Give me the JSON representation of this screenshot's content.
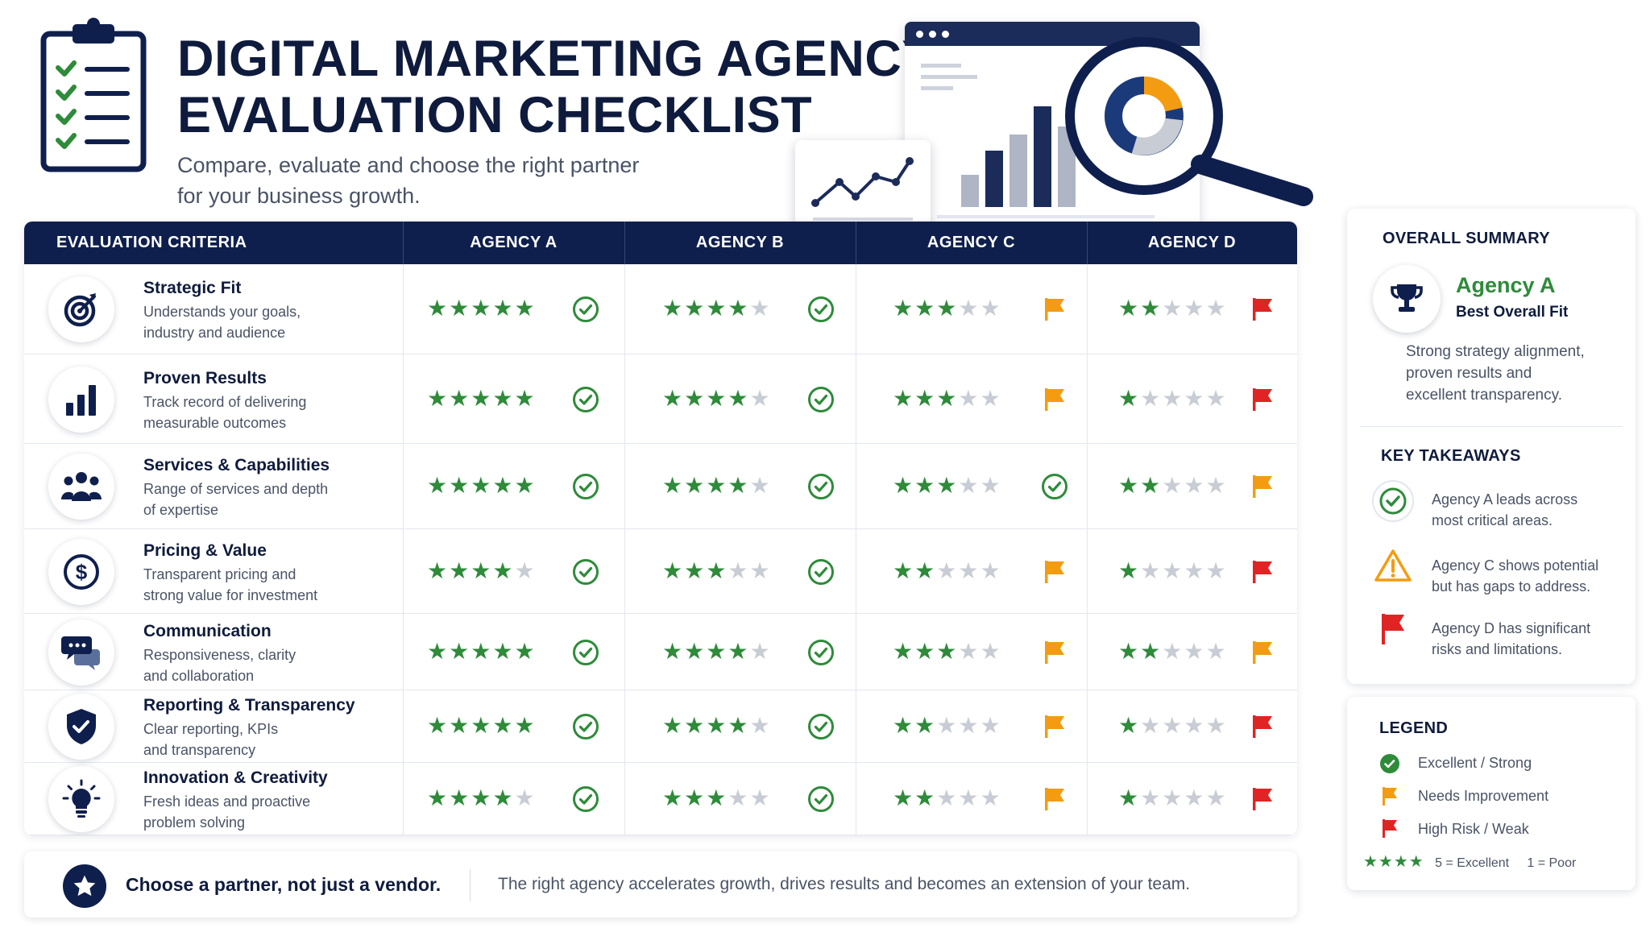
{
  "header": {
    "title_line1": "DIGITAL MARKETING AGENCY",
    "title_line2": "EVALUATION CHECKLIST",
    "subtitle_line1": "Compare, evaluate and choose the right partner",
    "subtitle_line2": "for your business growth."
  },
  "table": {
    "columns": [
      "EVALUATION CRITERIA",
      "AGENCY A",
      "AGENCY B",
      "AGENCY C",
      "AGENCY D"
    ],
    "rows": [
      {
        "title": "Strategic Fit",
        "desc1": "Understands your goals,",
        "desc2": "industry and audience",
        "icon": "target-icon",
        "ratings": [
          5,
          4,
          3,
          2
        ],
        "status": [
          "check",
          "check",
          "flag-orange",
          "flag-red"
        ]
      },
      {
        "title": "Proven Results",
        "desc1": "Track record of delivering",
        "desc2": "measurable outcomes",
        "icon": "bar-chart-icon",
        "ratings": [
          5,
          4,
          3,
          1
        ],
        "status": [
          "check",
          "check",
          "flag-orange",
          "flag-red"
        ]
      },
      {
        "title": "Services & Capabilities",
        "desc1": "Range of services and depth",
        "desc2": "of expertise",
        "icon": "team-icon",
        "ratings": [
          5,
          4,
          3,
          2
        ],
        "status": [
          "check",
          "check",
          "check",
          "flag-orange"
        ]
      },
      {
        "title": "Pricing & Value",
        "desc1": "Transparent pricing and",
        "desc2": "strong value for investment",
        "icon": "dollar-icon",
        "ratings": [
          4,
          3,
          2,
          1
        ],
        "status": [
          "check",
          "check",
          "flag-orange",
          "flag-red"
        ]
      },
      {
        "title": "Communication",
        "desc1": "Responsiveness, clarity",
        "desc2": "and collaboration",
        "icon": "chat-icon",
        "ratings": [
          5,
          4,
          3,
          2
        ],
        "status": [
          "check",
          "check",
          "flag-orange",
          "flag-orange"
        ]
      },
      {
        "title": "Reporting & Transparency",
        "desc1": "Clear reporting, KPIs",
        "desc2": "and transparency",
        "icon": "shield-check-icon",
        "ratings": [
          5,
          4,
          2,
          1
        ],
        "status": [
          "check",
          "check",
          "flag-orange",
          "flag-red"
        ]
      },
      {
        "title": "Innovation & Creativity",
        "desc1": "Fresh ideas and proactive",
        "desc2": "problem solving",
        "icon": "lightbulb-icon",
        "ratings": [
          4,
          3,
          2,
          1
        ],
        "status": [
          "check",
          "check",
          "flag-orange",
          "flag-red"
        ]
      }
    ]
  },
  "banner": {
    "strong": "Choose a partner, not just a vendor.",
    "text": "The right agency accelerates growth, drives results and becomes an extension of your team."
  },
  "summary": {
    "heading": "OVERALL SUMMARY",
    "winner": "Agency A",
    "winner_label": "Best Overall Fit",
    "text_line1": "Strong strategy alignment,",
    "text_line2": "proven results and",
    "text_line3": "excellent transparency.",
    "takeaways_heading": "KEY TAKEAWAYS",
    "takeaways": [
      {
        "icon": "check-circle-icon",
        "line1": "Agency A leads across",
        "line2": "most critical areas."
      },
      {
        "icon": "warning-icon",
        "line1": "Agency C shows potential",
        "line2": "but has gaps to address."
      },
      {
        "icon": "red-flag-icon",
        "line1": "Agency D has significant",
        "line2": "risks and limitations."
      }
    ]
  },
  "legend": {
    "heading": "LEGEND",
    "items": [
      "Excellent / Strong",
      "Needs Improvement",
      "High Risk / Weak"
    ],
    "scale_stars": "★★★★",
    "scale_high": "5 = Excellent",
    "scale_low": "1 = Poor"
  },
  "colors": {
    "navy": "#0f1f4d",
    "green": "#2e8b3a",
    "orange": "#f39c12",
    "red": "#e02424",
    "star_off": "#c8ccd4"
  }
}
